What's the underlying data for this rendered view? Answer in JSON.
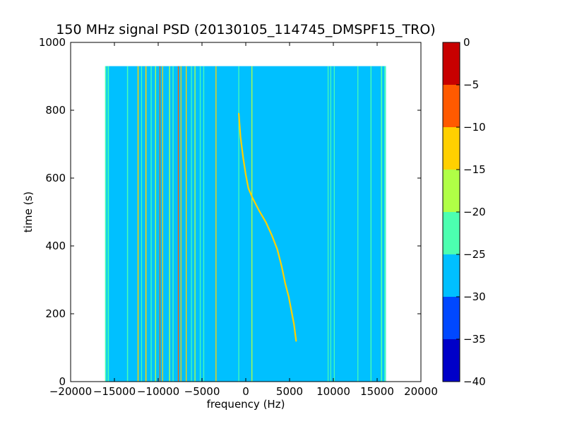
{
  "chart_data": {
    "type": "heatmap",
    "title": "150 MHz signal PSD (20130105_114745_DMSPF15_TRO)",
    "xlabel": "frequency (Hz)",
    "ylabel": "time (s)",
    "xlim": [
      -20000,
      20000
    ],
    "ylim": [
      0,
      1000
    ],
    "x_ticks": [
      -20000,
      -15000,
      -10000,
      -5000,
      0,
      5000,
      10000,
      15000,
      20000
    ],
    "y_ticks": [
      0,
      200,
      400,
      600,
      800,
      1000
    ],
    "data_extent": {
      "x": [
        -16000,
        16000
      ],
      "y": [
        0,
        930
      ]
    },
    "background_level": -27.5,
    "colorbar": {
      "range": [
        -40,
        0
      ],
      "ticks": [
        0,
        -5,
        -10,
        -15,
        -20,
        -25,
        -30,
        -35,
        -40
      ],
      "levels": [
        {
          "min": -40,
          "max": -35,
          "color": "#0000c8"
        },
        {
          "min": -35,
          "max": -30,
          "color": "#0048ff"
        },
        {
          "min": -30,
          "max": -25,
          "color": "#00c0ff"
        },
        {
          "min": -25,
          "max": -20,
          "color": "#4cffb0"
        },
        {
          "min": -20,
          "max": -15,
          "color": "#b0ff46"
        },
        {
          "min": -15,
          "max": -10,
          "color": "#ffd000"
        },
        {
          "min": -10,
          "max": -5,
          "color": "#ff5a00"
        },
        {
          "min": -5,
          "max": 0,
          "color": "#c80000"
        }
      ]
    },
    "lines": [
      {
        "freq": -16000,
        "width": 150,
        "level": -22
      },
      {
        "freq": -15700,
        "width": 150,
        "level": -22
      },
      {
        "freq": -13500,
        "width": 120,
        "level": -22
      },
      {
        "freq": -12300,
        "width": 120,
        "level": -12
      },
      {
        "freq": -11900,
        "width": 100,
        "level": -22
      },
      {
        "freq": -11400,
        "width": 130,
        "level": -12
      },
      {
        "freq": -10800,
        "width": 110,
        "level": -22
      },
      {
        "freq": -10300,
        "width": 110,
        "level": -17
      },
      {
        "freq": -9800,
        "width": 100,
        "level": -7
      },
      {
        "freq": -9500,
        "width": 100,
        "level": -12
      },
      {
        "freq": -8700,
        "width": 110,
        "level": -17
      },
      {
        "freq": -8300,
        "width": 110,
        "level": -22
      },
      {
        "freq": -7700,
        "width": 110,
        "level": -7
      },
      {
        "freq": -7400,
        "width": 100,
        "level": -12
      },
      {
        "freq": -6800,
        "width": 110,
        "level": -12
      },
      {
        "freq": -6200,
        "width": 100,
        "level": -22
      },
      {
        "freq": -5800,
        "width": 110,
        "level": -17
      },
      {
        "freq": -5200,
        "width": 100,
        "level": -22
      },
      {
        "freq": -4800,
        "width": 100,
        "level": -22
      },
      {
        "freq": -3400,
        "width": 110,
        "level": -12
      },
      {
        "freq": -800,
        "width": 100,
        "level": -22
      },
      {
        "freq": 700,
        "width": 110,
        "level": -17
      },
      {
        "freq": 9400,
        "width": 100,
        "level": -22
      },
      {
        "freq": 9700,
        "width": 90,
        "level": -22
      },
      {
        "freq": 10100,
        "width": 80,
        "level": -22
      },
      {
        "freq": 12800,
        "width": 100,
        "level": -22
      },
      {
        "freq": 14300,
        "width": 110,
        "level": -22
      },
      {
        "freq": 15500,
        "width": 150,
        "level": -22
      },
      {
        "freq": 15900,
        "width": 150,
        "level": -22
      }
    ],
    "satellite_track": {
      "level": -12,
      "points": [
        [
          -800,
          790
        ],
        [
          -600,
          720
        ],
        [
          -300,
          660
        ],
        [
          0,
          610
        ],
        [
          300,
          570
        ],
        [
          800,
          540
        ],
        [
          1500,
          505
        ],
        [
          2300,
          470
        ],
        [
          3000,
          430
        ],
        [
          3600,
          390
        ],
        [
          4100,
          340
        ],
        [
          4500,
          290
        ],
        [
          4900,
          250
        ],
        [
          5200,
          210
        ],
        [
          5500,
          170
        ],
        [
          5700,
          130
        ],
        [
          5750,
          120
        ]
      ]
    }
  }
}
